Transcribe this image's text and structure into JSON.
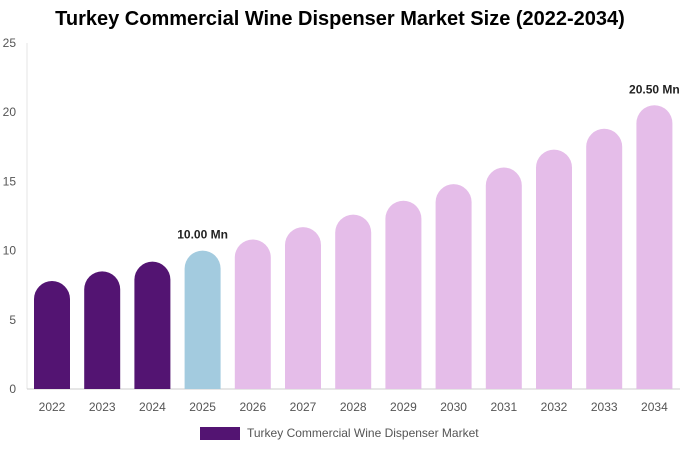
{
  "title": "Turkey Commercial Wine Dispenser Market Size (2022-2034)",
  "colors": {
    "historic": "#531472",
    "base": "#a3cbdf",
    "forecast": "#e5bde9"
  },
  "chart_data": {
    "type": "bar",
    "title": "Turkey Commercial Wine Dispenser Market Size (2022-2034)",
    "categories": [
      "2022",
      "2023",
      "2024",
      "2025",
      "2026",
      "2027",
      "2028",
      "2029",
      "2030",
      "2031",
      "2032",
      "2033",
      "2034"
    ],
    "series": [
      {
        "name": "Turkey Commercial Wine Dispenser Market",
        "values": [
          7.8,
          8.5,
          9.2,
          10.0,
          10.8,
          11.7,
          12.6,
          13.6,
          14.8,
          16.0,
          17.3,
          18.8,
          20.5
        ]
      }
    ],
    "bar_color_groups": [
      "historic",
      "historic",
      "historic",
      "base",
      "forecast",
      "forecast",
      "forecast",
      "forecast",
      "forecast",
      "forecast",
      "forecast",
      "forecast",
      "forecast"
    ],
    "data_labels": [
      {
        "index": 3,
        "text": "10.00 Mn"
      },
      {
        "index": 12,
        "text": "20.50 Mn"
      }
    ],
    "yticks": [
      0,
      5,
      10,
      15,
      20,
      25
    ],
    "ylim": [
      0,
      25
    ],
    "xlabel": "",
    "ylabel": "",
    "legend": {
      "label": "Turkey Commercial Wine Dispenser Market",
      "position": "bottom-center"
    },
    "grid": false
  }
}
